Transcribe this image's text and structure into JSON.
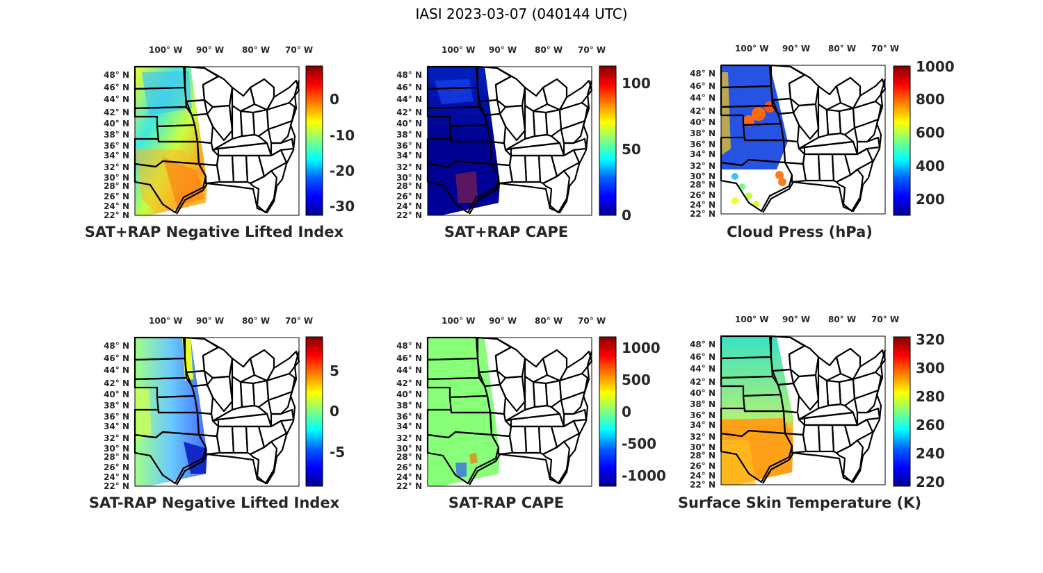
{
  "figure": {
    "title": "IASI 2023-03-07 (040144 UTC)"
  },
  "map": {
    "lon_ticks": [
      "100° W",
      "90° W",
      "80° W",
      "70° W"
    ],
    "lat_ticks": [
      "48° N",
      "46° N",
      "44° N",
      "42° N",
      "40° N",
      "38° N",
      "36° N",
      "34° N",
      "32° N",
      "30° N",
      "28° N",
      "26° N",
      "24° N",
      "22° N"
    ]
  },
  "colors": {
    "colormap": [
      "#00008f",
      "#0000ff",
      "#0080ff",
      "#00ffff",
      "#80ff80",
      "#ffff00",
      "#ff8000",
      "#ff0000",
      "#800000"
    ],
    "frame": "#000000",
    "text": "#262626"
  },
  "chart_data": [
    {
      "type": "heatmap",
      "title": "SAT+RAP Negative Lifted Index",
      "colorbar_ticks": [
        "0",
        "-10",
        "-20",
        "-30"
      ],
      "colorbar_values": [
        0,
        -10,
        -20,
        -30
      ],
      "clim": [
        -34,
        8
      ],
      "coverage": "swath",
      "dominant": "light blue to yellow, orange along Gulf coast"
    },
    {
      "type": "heatmap",
      "title": "SAT+RAP CAPE",
      "colorbar_ticks": [
        "100",
        "50",
        "0"
      ],
      "colorbar_values": [
        100,
        50,
        0
      ],
      "clim": [
        0,
        113
      ],
      "coverage": "swath",
      "dominant": "dark blue"
    },
    {
      "type": "heatmap",
      "title": "Cloud Press (hPa)",
      "colorbar_ticks": [
        "1000",
        "800",
        "600",
        "400",
        "200"
      ],
      "colorbar_values": [
        1000,
        800,
        600,
        400,
        200
      ],
      "clim": [
        100,
        1000
      ],
      "coverage": "cloudy pixels",
      "dominant": "blue"
    },
    {
      "type": "heatmap",
      "title": "SAT-RAP Negative Lifted Index",
      "colorbar_ticks": [
        "5",
        "0",
        "-5"
      ],
      "colorbar_values": [
        5,
        0,
        -5
      ],
      "clim": [
        -9,
        9
      ],
      "coverage": "clear pixels",
      "dominant": "cyan/blue"
    },
    {
      "type": "heatmap",
      "title": "SAT-RAP CAPE",
      "colorbar_ticks": [
        "1000",
        "500",
        "0",
        "-500",
        "-1000"
      ],
      "colorbar_values": [
        1000,
        500,
        0,
        -500,
        -1000
      ],
      "clim": [
        -1200,
        1200
      ],
      "coverage": "swath",
      "dominant": "light green (near 0)"
    },
    {
      "type": "heatmap",
      "title": "Surface Skin Temperature (K)",
      "colorbar_ticks": [
        "320",
        "300",
        "280",
        "260",
        "240",
        "220"
      ],
      "colorbar_values": [
        320,
        300,
        280,
        260,
        240,
        220
      ],
      "clim": [
        216,
        324
      ],
      "coverage": "clear pixels",
      "dominant": "green north, orange south"
    }
  ]
}
